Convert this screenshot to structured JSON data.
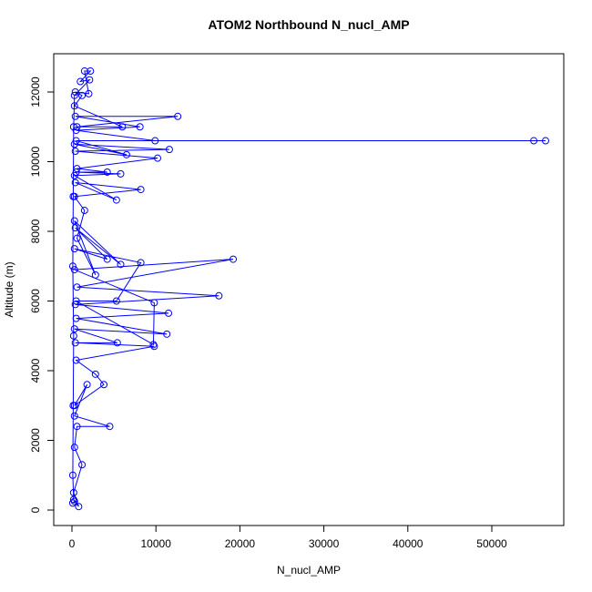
{
  "chart_data": {
    "type": "line",
    "title": "ATOM2 Northbound N_nucl_AMP",
    "xlabel": "N_nucl_AMP",
    "ylabel": "Altitude (m)",
    "color": "#0000ff",
    "x": [
      100,
      300,
      800,
      200,
      1200,
      300,
      600,
      4500,
      300,
      1800,
      300,
      3800,
      2800,
      500,
      9800,
      400,
      5400,
      300,
      11300,
      500,
      11500,
      400,
      17500,
      600,
      19200,
      300,
      9800,
      9700,
      500,
      5300,
      8200,
      300,
      4200,
      400,
      5800,
      300,
      2800,
      600,
      1500,
      300,
      8200,
      400,
      5300,
      300,
      5800,
      500,
      4200,
      600,
      10200,
      400,
      11600,
      300,
      6500,
      500,
      55000,
      56400,
      9900,
      500,
      8100,
      400,
      12600,
      600,
      6000,
      300,
      1200,
      400,
      2000,
      1500,
      2200,
      1000,
      2100,
      300,
      200,
      150,
      100,
      200,
      150,
      100,
      200
    ],
    "values": [
      200,
      250,
      100,
      500,
      1300,
      1800,
      2400,
      2400,
      2700,
      3600,
      3000,
      3600,
      3900,
      4300,
      4700,
      4800,
      4800,
      5200,
      5050,
      5500,
      5650,
      5900,
      6150,
      6400,
      7200,
      6900,
      5950,
      4750,
      6000,
      6000,
      7100,
      7500,
      7200,
      8100,
      7050,
      8300,
      6750,
      7800,
      8600,
      9000,
      9200,
      9400,
      8900,
      9600,
      9650,
      9700,
      9700,
      9800,
      10100,
      10300,
      10350,
      10500,
      10200,
      10600,
      10600,
      10600,
      10600,
      10900,
      11000,
      11300,
      11300,
      11000,
      11000,
      11600,
      11900,
      12000,
      11950,
      12600,
      12600,
      12300,
      12350,
      11900,
      11000,
      9000,
      7000,
      5000,
      3000,
      1000,
      300
    ],
    "xlim": [
      -2170,
      58570
    ],
    "ylim": [
      -444,
      13098
    ],
    "xticks": [
      0,
      10000,
      20000,
      30000,
      40000,
      50000
    ],
    "yticks": [
      0,
      2000,
      4000,
      6000,
      8000,
      10000,
      12000
    ]
  }
}
